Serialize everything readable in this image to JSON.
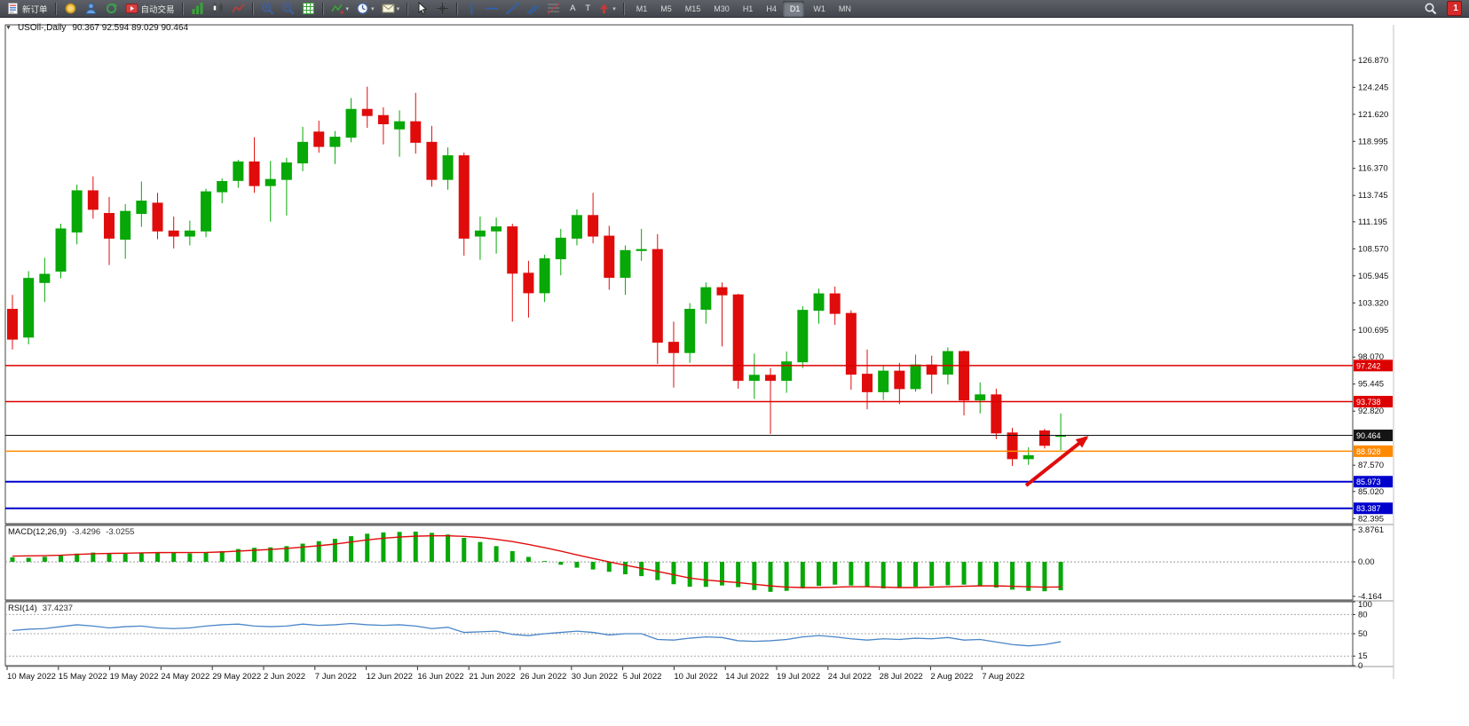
{
  "toolbar": {
    "notification_count": "1",
    "items": [
      {
        "name": "new-order-button",
        "icon": "new-order-icon",
        "label": "新订单"
      },
      {
        "sep": true
      },
      {
        "name": "market-watch-button",
        "icon": "gold-icon"
      },
      {
        "name": "support-button",
        "icon": "profile-icon"
      },
      {
        "name": "refresh-button",
        "icon": "refresh-icon"
      },
      {
        "name": "auto-trading-button",
        "icon": "auto-trading-icon",
        "label": "自动交易"
      },
      {
        "sep": true
      },
      {
        "name": "bar-chart-button",
        "icon": "bars-icon"
      },
      {
        "name": "candlestick-chart-button",
        "icon": "candles-icon"
      },
      {
        "name": "line-chart-button",
        "icon": "line-chart-icon"
      },
      {
        "sep": true
      },
      {
        "name": "zoom-in-button",
        "icon": "zoom-in-icon"
      },
      {
        "name": "zoom-out-button",
        "icon": "zoom-out-icon"
      },
      {
        "name": "grid-button",
        "icon": "grid-icon"
      },
      {
        "sep": true
      },
      {
        "name": "indicators-button",
        "icon": "indicators-icon",
        "dropdown": true
      },
      {
        "name": "periods-button",
        "icon": "clock-icon",
        "dropdown": true
      },
      {
        "name": "templates-button",
        "icon": "mail-icon",
        "dropdown": true
      },
      {
        "sep": true
      },
      {
        "name": "cursor-button",
        "icon": "cursor-icon"
      },
      {
        "name": "crosshair-button",
        "icon": "crosshair-icon"
      },
      {
        "sep": true
      },
      {
        "name": "vertical-line-button",
        "icon": "vline-icon"
      },
      {
        "name": "horizontal-line-button",
        "icon": "hline-icon"
      },
      {
        "name": "trendline-button",
        "icon": "trendline-icon"
      },
      {
        "name": "equidistant-channel-button",
        "icon": "channel-icon"
      },
      {
        "name": "fibonacci-button",
        "icon": "fibo-icon"
      },
      {
        "name": "text-button",
        "label": "A"
      },
      {
        "name": "text-label-button",
        "label": "T"
      },
      {
        "name": "arrows-button",
        "icon": "arrows-icon",
        "dropdown": true
      },
      {
        "sep": true
      },
      {
        "name": "timeframe-m1-button",
        "label": "M1",
        "tf": true
      },
      {
        "name": "timeframe-m5-button",
        "label": "M5",
        "tf": true
      },
      {
        "name": "timeframe-m15-button",
        "label": "M15",
        "tf": true
      },
      {
        "name": "timeframe-m30-button",
        "label": "M30",
        "tf": true
      },
      {
        "name": "timeframe-h1-button",
        "label": "H1",
        "tf": true
      },
      {
        "name": "timeframe-h4-button",
        "label": "H4",
        "tf": true
      },
      {
        "name": "timeframe-d1-button",
        "label": "D1",
        "tf": true,
        "active": true
      },
      {
        "name": "timeframe-w1-button",
        "label": "W1",
        "tf": true
      },
      {
        "name": "timeframe-mn-button",
        "label": "MN",
        "tf": true
      }
    ],
    "right_items": [
      {
        "name": "search-button",
        "icon": "search-icon"
      },
      {
        "name": "notification-badge",
        "label": "1",
        "badge": true
      }
    ]
  },
  "chart": {
    "collapse_glyph": "▼",
    "title_symbol": "USOil-,Daily",
    "title_ohlc": "90.367 92.594 89.029 90.464",
    "colors": {
      "bull": "#07a807",
      "bear": "#e00c0c",
      "macd_hist": "#07a807",
      "macd_signal": "#e00c0c",
      "rsi": "#4a86c8",
      "arrow": "#e00c0c",
      "red_level": "#dd0000",
      "orange_level": "#ff8a00",
      "blue_level": "#0000cd",
      "black_level": "#141414"
    },
    "price_ticks": [
      "126.870",
      "124.245",
      "121.620",
      "118.995",
      "116.370",
      "113.745",
      "111.195",
      "108.570",
      "105.945",
      "103.320",
      "100.695",
      "98.070",
      "95.445",
      "92.820",
      "87.570",
      "85.020",
      "82.395"
    ],
    "price_lines": [
      {
        "text": "97.242",
        "value": 97.242,
        "color": "#dd0000",
        "width": 1.5
      },
      {
        "text": "93.738",
        "value": 93.738,
        "color": "#dd0000",
        "width": 1.5
      },
      {
        "text": "90.464",
        "value": 90.464,
        "color": "#141414",
        "width": 1
      },
      {
        "text": "88.928",
        "value": 88.928,
        "color": "#ff8a00",
        "width": 1.5
      },
      {
        "text": "85.973",
        "value": 85.973,
        "color": "#0000cd",
        "width": 2
      },
      {
        "text": "83.387",
        "value": 83.387,
        "color": "#0000cd",
        "width": 2
      }
    ],
    "time_labels": [
      "10 May 2022",
      "15 May 2022",
      "19 May 2022",
      "24 May 2022",
      "29 May 2022",
      "2 Jun 2022",
      "7 Jun 2022",
      "12 Jun 2022",
      "16 Jun 2022",
      "21 Jun 2022",
      "26 Jun 2022",
      "30 Jun 2022",
      "5 Jul 2022",
      "10 Jul 2022",
      "14 Jul 2022",
      "19 Jul 2022",
      "24 Jul 2022",
      "28 Jul 2022",
      "2 Aug 2022",
      "7 Aug 2022"
    ]
  },
  "panes": {
    "macd": {
      "label": "MACD(12,26,9)",
      "value_main": "-3.4296",
      "value_signal": "-3.0255"
    },
    "rsi": {
      "label": "RSI(14)",
      "value": "37.4237"
    }
  },
  "chart_data": {
    "type": "candlestick",
    "symbol": "USOil",
    "timeframe": "Daily",
    "current_bar": {
      "open": 90.367,
      "high": 92.594,
      "low": 89.029,
      "close": 90.464
    },
    "ylim": [
      81.9,
      130.3
    ],
    "horizontal_levels": [
      97.242,
      93.738,
      90.464,
      88.928,
      85.973,
      83.387
    ],
    "candles": [
      [
        102.7,
        104.1,
        98.8,
        99.8
      ],
      [
        100.0,
        106.4,
        99.3,
        105.7
      ],
      [
        105.3,
        107.7,
        103.4,
        106.1
      ],
      [
        106.4,
        111.0,
        105.7,
        110.5
      ],
      [
        110.2,
        114.8,
        109.0,
        114.2
      ],
      [
        114.2,
        115.6,
        111.5,
        112.4
      ],
      [
        112.0,
        113.6,
        107.0,
        109.6
      ],
      [
        109.5,
        112.9,
        107.6,
        112.2
      ],
      [
        112.0,
        115.1,
        110.7,
        113.2
      ],
      [
        113.0,
        114.0,
        109.5,
        110.3
      ],
      [
        110.3,
        111.7,
        108.6,
        109.8
      ],
      [
        109.8,
        111.3,
        108.9,
        110.3
      ],
      [
        110.3,
        114.4,
        109.7,
        114.1
      ],
      [
        114.1,
        115.4,
        113.0,
        115.1
      ],
      [
        115.2,
        117.2,
        114.5,
        117.0
      ],
      [
        117.0,
        119.4,
        114.0,
        114.7
      ],
      [
        114.7,
        117.1,
        111.2,
        115.3
      ],
      [
        115.3,
        117.4,
        111.8,
        116.9
      ],
      [
        116.9,
        120.4,
        116.1,
        118.9
      ],
      [
        119.9,
        121.0,
        117.9,
        118.5
      ],
      [
        118.5,
        120.0,
        116.8,
        119.4
      ],
      [
        119.4,
        123.2,
        118.9,
        122.1
      ],
      [
        122.1,
        124.3,
        120.3,
        121.5
      ],
      [
        121.5,
        122.3,
        118.7,
        120.7
      ],
      [
        120.2,
        122.0,
        117.5,
        120.9
      ],
      [
        120.9,
        123.7,
        117.8,
        118.9
      ],
      [
        118.9,
        120.5,
        114.6,
        115.3
      ],
      [
        115.3,
        118.4,
        114.3,
        117.6
      ],
      [
        117.6,
        117.9,
        107.9,
        109.6
      ],
      [
        109.8,
        111.7,
        107.5,
        110.3
      ],
      [
        110.3,
        111.6,
        108.1,
        110.7
      ],
      [
        110.7,
        111.0,
        101.5,
        106.2
      ],
      [
        106.2,
        107.4,
        101.9,
        104.3
      ],
      [
        104.3,
        108.0,
        103.4,
        107.6
      ],
      [
        107.6,
        110.5,
        106.0,
        109.6
      ],
      [
        109.6,
        112.4,
        108.9,
        111.8
      ],
      [
        111.8,
        114.0,
        109.1,
        109.8
      ],
      [
        109.8,
        110.8,
        104.6,
        105.8
      ],
      [
        105.8,
        108.9,
        104.1,
        108.4
      ],
      [
        108.4,
        110.5,
        107.4,
        108.5
      ],
      [
        108.5,
        110.0,
        97.4,
        99.5
      ],
      [
        99.5,
        101.5,
        95.1,
        98.5
      ],
      [
        98.5,
        103.3,
        97.5,
        102.7
      ],
      [
        102.7,
        105.3,
        101.3,
        104.8
      ],
      [
        104.8,
        105.3,
        99.1,
        104.1
      ],
      [
        104.1,
        104.2,
        95.0,
        95.8
      ],
      [
        95.8,
        98.4,
        94.0,
        96.3
      ],
      [
        96.3,
        97.0,
        90.6,
        95.8
      ],
      [
        95.8,
        98.6,
        94.6,
        97.6
      ],
      [
        97.6,
        103.0,
        97.0,
        102.6
      ],
      [
        102.6,
        104.7,
        101.3,
        104.2
      ],
      [
        104.2,
        104.9,
        101.2,
        102.3
      ],
      [
        102.3,
        102.6,
        94.9,
        96.4
      ],
      [
        96.4,
        98.8,
        93.0,
        94.7
      ],
      [
        94.7,
        97.3,
        93.9,
        96.7
      ],
      [
        96.7,
        97.5,
        93.5,
        95.0
      ],
      [
        95.0,
        98.3,
        94.7,
        97.3
      ],
      [
        97.3,
        98.2,
        94.5,
        96.4
      ],
      [
        96.4,
        99.0,
        95.4,
        98.6
      ],
      [
        98.6,
        98.7,
        92.4,
        93.9
      ],
      [
        93.9,
        95.6,
        92.6,
        94.4
      ],
      [
        94.4,
        95.0,
        90.1,
        90.7
      ],
      [
        90.7,
        91.2,
        87.5,
        88.2
      ],
      [
        88.2,
        89.3,
        87.6,
        88.5
      ],
      [
        90.9,
        91.1,
        89.2,
        89.5
      ],
      [
        90.367,
        92.594,
        89.029,
        90.464
      ]
    ],
    "indicators": [
      {
        "type": "bar",
        "name": "MACD(12,26,9) histogram",
        "current": -3.4296,
        "ylim": [
          -4.6,
          4.4
        ],
        "axis_ticks": [
          {
            "text": "3.8761",
            "value": 3.8761
          },
          {
            "text": "0.00",
            "value": 0
          },
          {
            "text": "-4.164",
            "value": -4.164
          }
        ],
        "values": [
          0.55,
          0.5,
          0.62,
          0.78,
          1.0,
          1.12,
          1.02,
          0.98,
          1.12,
          1.18,
          1.08,
          1.02,
          1.1,
          1.3,
          1.55,
          1.7,
          1.75,
          1.9,
          2.2,
          2.5,
          2.78,
          3.1,
          3.4,
          3.55,
          3.62,
          3.65,
          3.5,
          3.3,
          2.9,
          2.4,
          1.9,
          1.3,
          0.6,
          0.1,
          -0.35,
          -0.7,
          -0.92,
          -1.2,
          -1.5,
          -1.72,
          -2.2,
          -2.7,
          -3.0,
          -3.02,
          -2.85,
          -3.05,
          -3.4,
          -3.62,
          -3.5,
          -3.2,
          -2.9,
          -2.75,
          -2.85,
          -3.05,
          -3.2,
          -3.15,
          -3.0,
          -2.9,
          -2.82,
          -2.75,
          -2.9,
          -3.1,
          -3.35,
          -3.5,
          -3.55,
          -3.4296
        ]
      },
      {
        "type": "line",
        "name": "MACD signal",
        "current": -3.0255,
        "values": [
          0.7,
          0.72,
          0.75,
          0.8,
          0.9,
          0.98,
          1.02,
          1.04,
          1.08,
          1.12,
          1.13,
          1.13,
          1.14,
          1.2,
          1.3,
          1.4,
          1.5,
          1.62,
          1.78,
          1.95,
          2.15,
          2.4,
          2.65,
          2.85,
          3.0,
          3.1,
          3.15,
          3.15,
          3.08,
          2.95,
          2.72,
          2.45,
          2.1,
          1.72,
          1.3,
          0.85,
          0.42,
          0.0,
          -0.4,
          -0.78,
          -1.15,
          -1.55,
          -1.95,
          -2.2,
          -2.35,
          -2.5,
          -2.7,
          -2.9,
          -3.05,
          -3.1,
          -3.1,
          -3.05,
          -3.0,
          -3.0,
          -3.05,
          -3.1,
          -3.1,
          -3.05,
          -3.0,
          -2.95,
          -2.9,
          -2.9,
          -2.95,
          -3.0,
          -3.05,
          -3.0255
        ]
      },
      {
        "type": "line",
        "name": "RSI(14)",
        "current": 37.4237,
        "ylim": [
          0,
          100
        ],
        "levels": [
          80,
          50,
          15
        ],
        "axis_ticks": [
          {
            "text": "100",
            "value": 100
          },
          {
            "text": "80",
            "value": 80
          },
          {
            "text": "50",
            "value": 50
          },
          {
            "text": "15",
            "value": 15
          },
          {
            "text": "0",
            "value": 0
          }
        ],
        "values": [
          55,
          57,
          58,
          61,
          64,
          62,
          59,
          61,
          62,
          59,
          58,
          59,
          62,
          64,
          65,
          62,
          61,
          62,
          65,
          63,
          64,
          66,
          64,
          63,
          64,
          62,
          58,
          60,
          52,
          53,
          54,
          49,
          47,
          50,
          52,
          54,
          52,
          48,
          50,
          50,
          41,
          40,
          43,
          45,
          44,
          39,
          38,
          39,
          41,
          45,
          47,
          45,
          42,
          40,
          42,
          41,
          43,
          42,
          44,
          40,
          41,
          37,
          33,
          31,
          33,
          37.4237
        ]
      }
    ]
  }
}
